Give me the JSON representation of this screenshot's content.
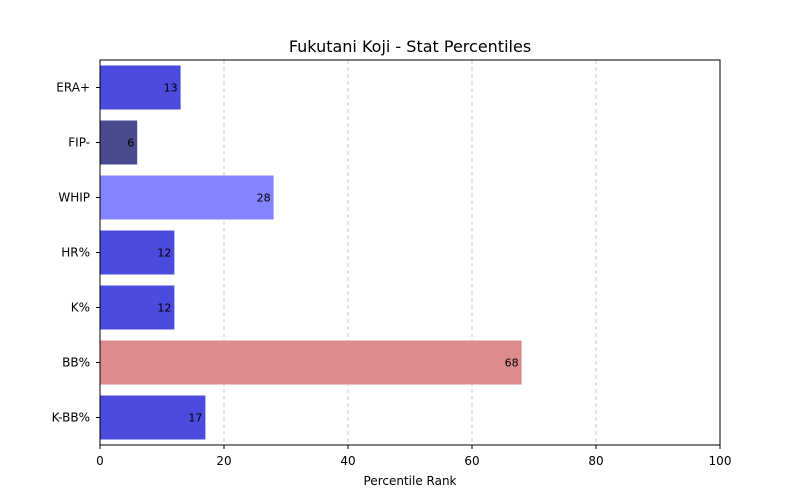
{
  "chart_data": {
    "type": "bar",
    "orientation": "horizontal",
    "title": "Fukutani Koji - Stat Percentiles",
    "xlabel": "Percentile Rank",
    "ylabel": "",
    "xlim": [
      0,
      100
    ],
    "xticks": [
      "0",
      "20",
      "40",
      "60",
      "80",
      "100"
    ],
    "grid": "x-dashed",
    "categories": [
      "ERA+",
      "FIP-",
      "WHIP",
      "HR%",
      "K%",
      "BB%",
      "K-BB%"
    ],
    "values": [
      13,
      6,
      28,
      12,
      12,
      68,
      17
    ],
    "colors": [
      "#4b4bdd",
      "#4a4a8e",
      "#8484ff",
      "#4b4bdd",
      "#4b4bdd",
      "#dd8b8b",
      "#4b4bdd"
    ]
  }
}
